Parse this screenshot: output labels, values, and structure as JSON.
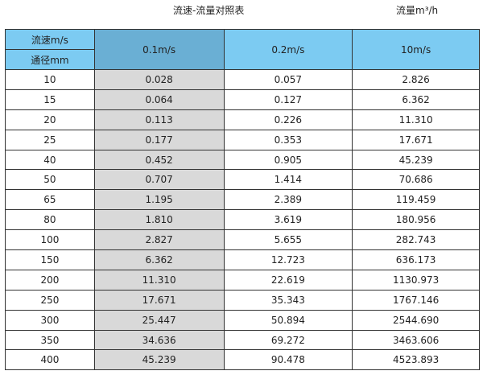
{
  "title": "流速-流量对照表",
  "unit_label": "流量m³/h",
  "header": {
    "velocity_label": "流速m/s",
    "diameter_label": "通径mm",
    "columns": [
      "0.1m/s",
      "0.2m/s",
      "10m/s"
    ]
  },
  "rows": [
    [
      "10",
      "0.028",
      "0.057",
      "2.826"
    ],
    [
      "15",
      "0.064",
      "0.127",
      "6.362"
    ],
    [
      "20",
      "0.113",
      "0.226",
      "11.310"
    ],
    [
      "25",
      "0.177",
      "0.353",
      "17.671"
    ],
    [
      "40",
      "0.452",
      "0.905",
      "45.239"
    ],
    [
      "50",
      "0.707",
      "1.414",
      "70.686"
    ],
    [
      "65",
      "1.195",
      "2.389",
      "119.459"
    ],
    [
      "80",
      "1.810",
      "3.619",
      "180.956"
    ],
    [
      "100",
      "2.827",
      "5.655",
      "282.743"
    ],
    [
      "150",
      "6.362",
      "12.723",
      "636.173"
    ],
    [
      "200",
      "11.310",
      "22.619",
      "1130.973"
    ],
    [
      "250",
      "17.671",
      "35.343",
      "1767.146"
    ],
    [
      "300",
      "25.447",
      "50.894",
      "2544.690"
    ],
    [
      "350",
      "34.636",
      "69.272",
      "3463.606"
    ],
    [
      "400",
      "45.239",
      "90.478",
      "4523.893"
    ]
  ]
}
